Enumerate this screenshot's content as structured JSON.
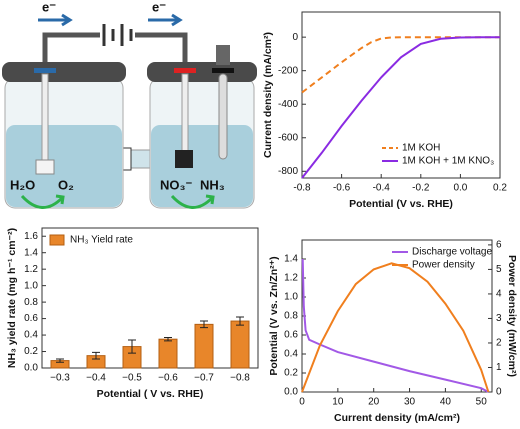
{
  "diagram": {
    "labels": [
      "e⁻",
      "e⁻",
      "H₂O",
      "O₂",
      "NO₃⁻",
      "NH₃"
    ]
  },
  "chart_data": [
    {
      "type": "line",
      "xlabel": "Potential (V vs. RHE)",
      "ylabel": "Current density (mA/cm²)",
      "xlim": [
        -0.8,
        0.2
      ],
      "ylim": [
        -840,
        150
      ],
      "xticks": [
        -0.8,
        -0.6,
        -0.4,
        -0.2,
        {
          "value": 0,
          "label": "0.0"
        },
        0.2
      ],
      "yticks": [
        0,
        -200,
        -400,
        -600,
        -800
      ],
      "legend": "lower right",
      "series": [
        {
          "name": "1M KOH",
          "color": "#f07f1e",
          "dash": true,
          "x": [
            -0.8,
            -0.7,
            -0.6,
            -0.5,
            -0.45,
            -0.4,
            -0.35,
            -0.3,
            0,
            0.2
          ],
          "values": [
            -330,
            -240,
            -150,
            -65,
            -30,
            -8,
            -2,
            0,
            0,
            0
          ]
        },
        {
          "name": "1M KOH + 1M KNO₃",
          "color": "#8a2be2",
          "dash": false,
          "x": [
            -0.8,
            -0.7,
            -0.6,
            -0.5,
            -0.4,
            -0.3,
            -0.2,
            -0.1,
            0,
            0.1,
            0.2
          ],
          "values": [
            -840,
            -690,
            -530,
            -380,
            -240,
            -120,
            -40,
            -10,
            -2,
            0,
            0
          ]
        }
      ]
    },
    {
      "type": "bar",
      "xlabel": "Potential ( V vs. RHE)",
      "ylabel": "NH₃ yield rate (mg h⁻¹ cm⁻²)",
      "categories": [
        "−0.3",
        "−0.4",
        "−0.5",
        "−0.6",
        "−0.7",
        "−0.8"
      ],
      "ylim": [
        0,
        1.7
      ],
      "yticks": [
        {
          "value": 0,
          "label": "0.0"
        },
        0.2,
        0.4,
        0.6,
        0.8,
        {
          "value": 1,
          "label": "1.0"
        },
        1.2,
        1.4,
        1.6
      ],
      "legend": "upper left",
      "series": [
        {
          "name": "NH₃ Yield rate",
          "color": "#e8862a",
          "values": [
            0.09,
            0.15,
            0.26,
            0.35,
            0.53,
            0.57
          ],
          "errors": [
            0.02,
            0.04,
            0.08,
            0.02,
            0.04,
            0.05
          ]
        }
      ]
    },
    {
      "type": "line",
      "xlabel": "Current density (mA/cm²)",
      "ylabel": "Potential (V vs. Zn/Zn²⁺)",
      "y2label": "Power density (mW/cm²)",
      "xlim": [
        0,
        53
      ],
      "ylim": [
        0,
        1.6
      ],
      "y2lim": [
        0,
        6.2
      ],
      "xticks": [
        0,
        10,
        20,
        30,
        40,
        50
      ],
      "yticks": [
        {
          "value": 0,
          "label": "0.0"
        },
        0.2,
        0.4,
        0.6,
        0.8,
        {
          "value": 1,
          "label": "1.0"
        },
        1.2,
        1.4
      ],
      "y2ticks": [
        0,
        1,
        2,
        3,
        4,
        5,
        6
      ],
      "legend": "upper right",
      "series": [
        {
          "name": "Discharge voltage",
          "color": "#a259e6",
          "dash": false,
          "x": [
            0.2,
            0.5,
            1,
            2,
            5,
            10,
            20,
            30,
            40,
            50,
            52
          ],
          "values": [
            1.4,
            0.9,
            0.65,
            0.55,
            0.5,
            0.42,
            0.32,
            0.22,
            0.13,
            0.04,
            0
          ]
        },
        {
          "name": "Power density",
          "color": "#f07f1e",
          "dash": false,
          "axis": "y2",
          "x": [
            0,
            5,
            10,
            15,
            20,
            25,
            30,
            35,
            40,
            45,
            50,
            52
          ],
          "values": [
            0,
            1.9,
            3.3,
            4.4,
            5.0,
            5.25,
            5.05,
            4.5,
            3.6,
            2.5,
            0.9,
            0
          ]
        }
      ]
    }
  ]
}
